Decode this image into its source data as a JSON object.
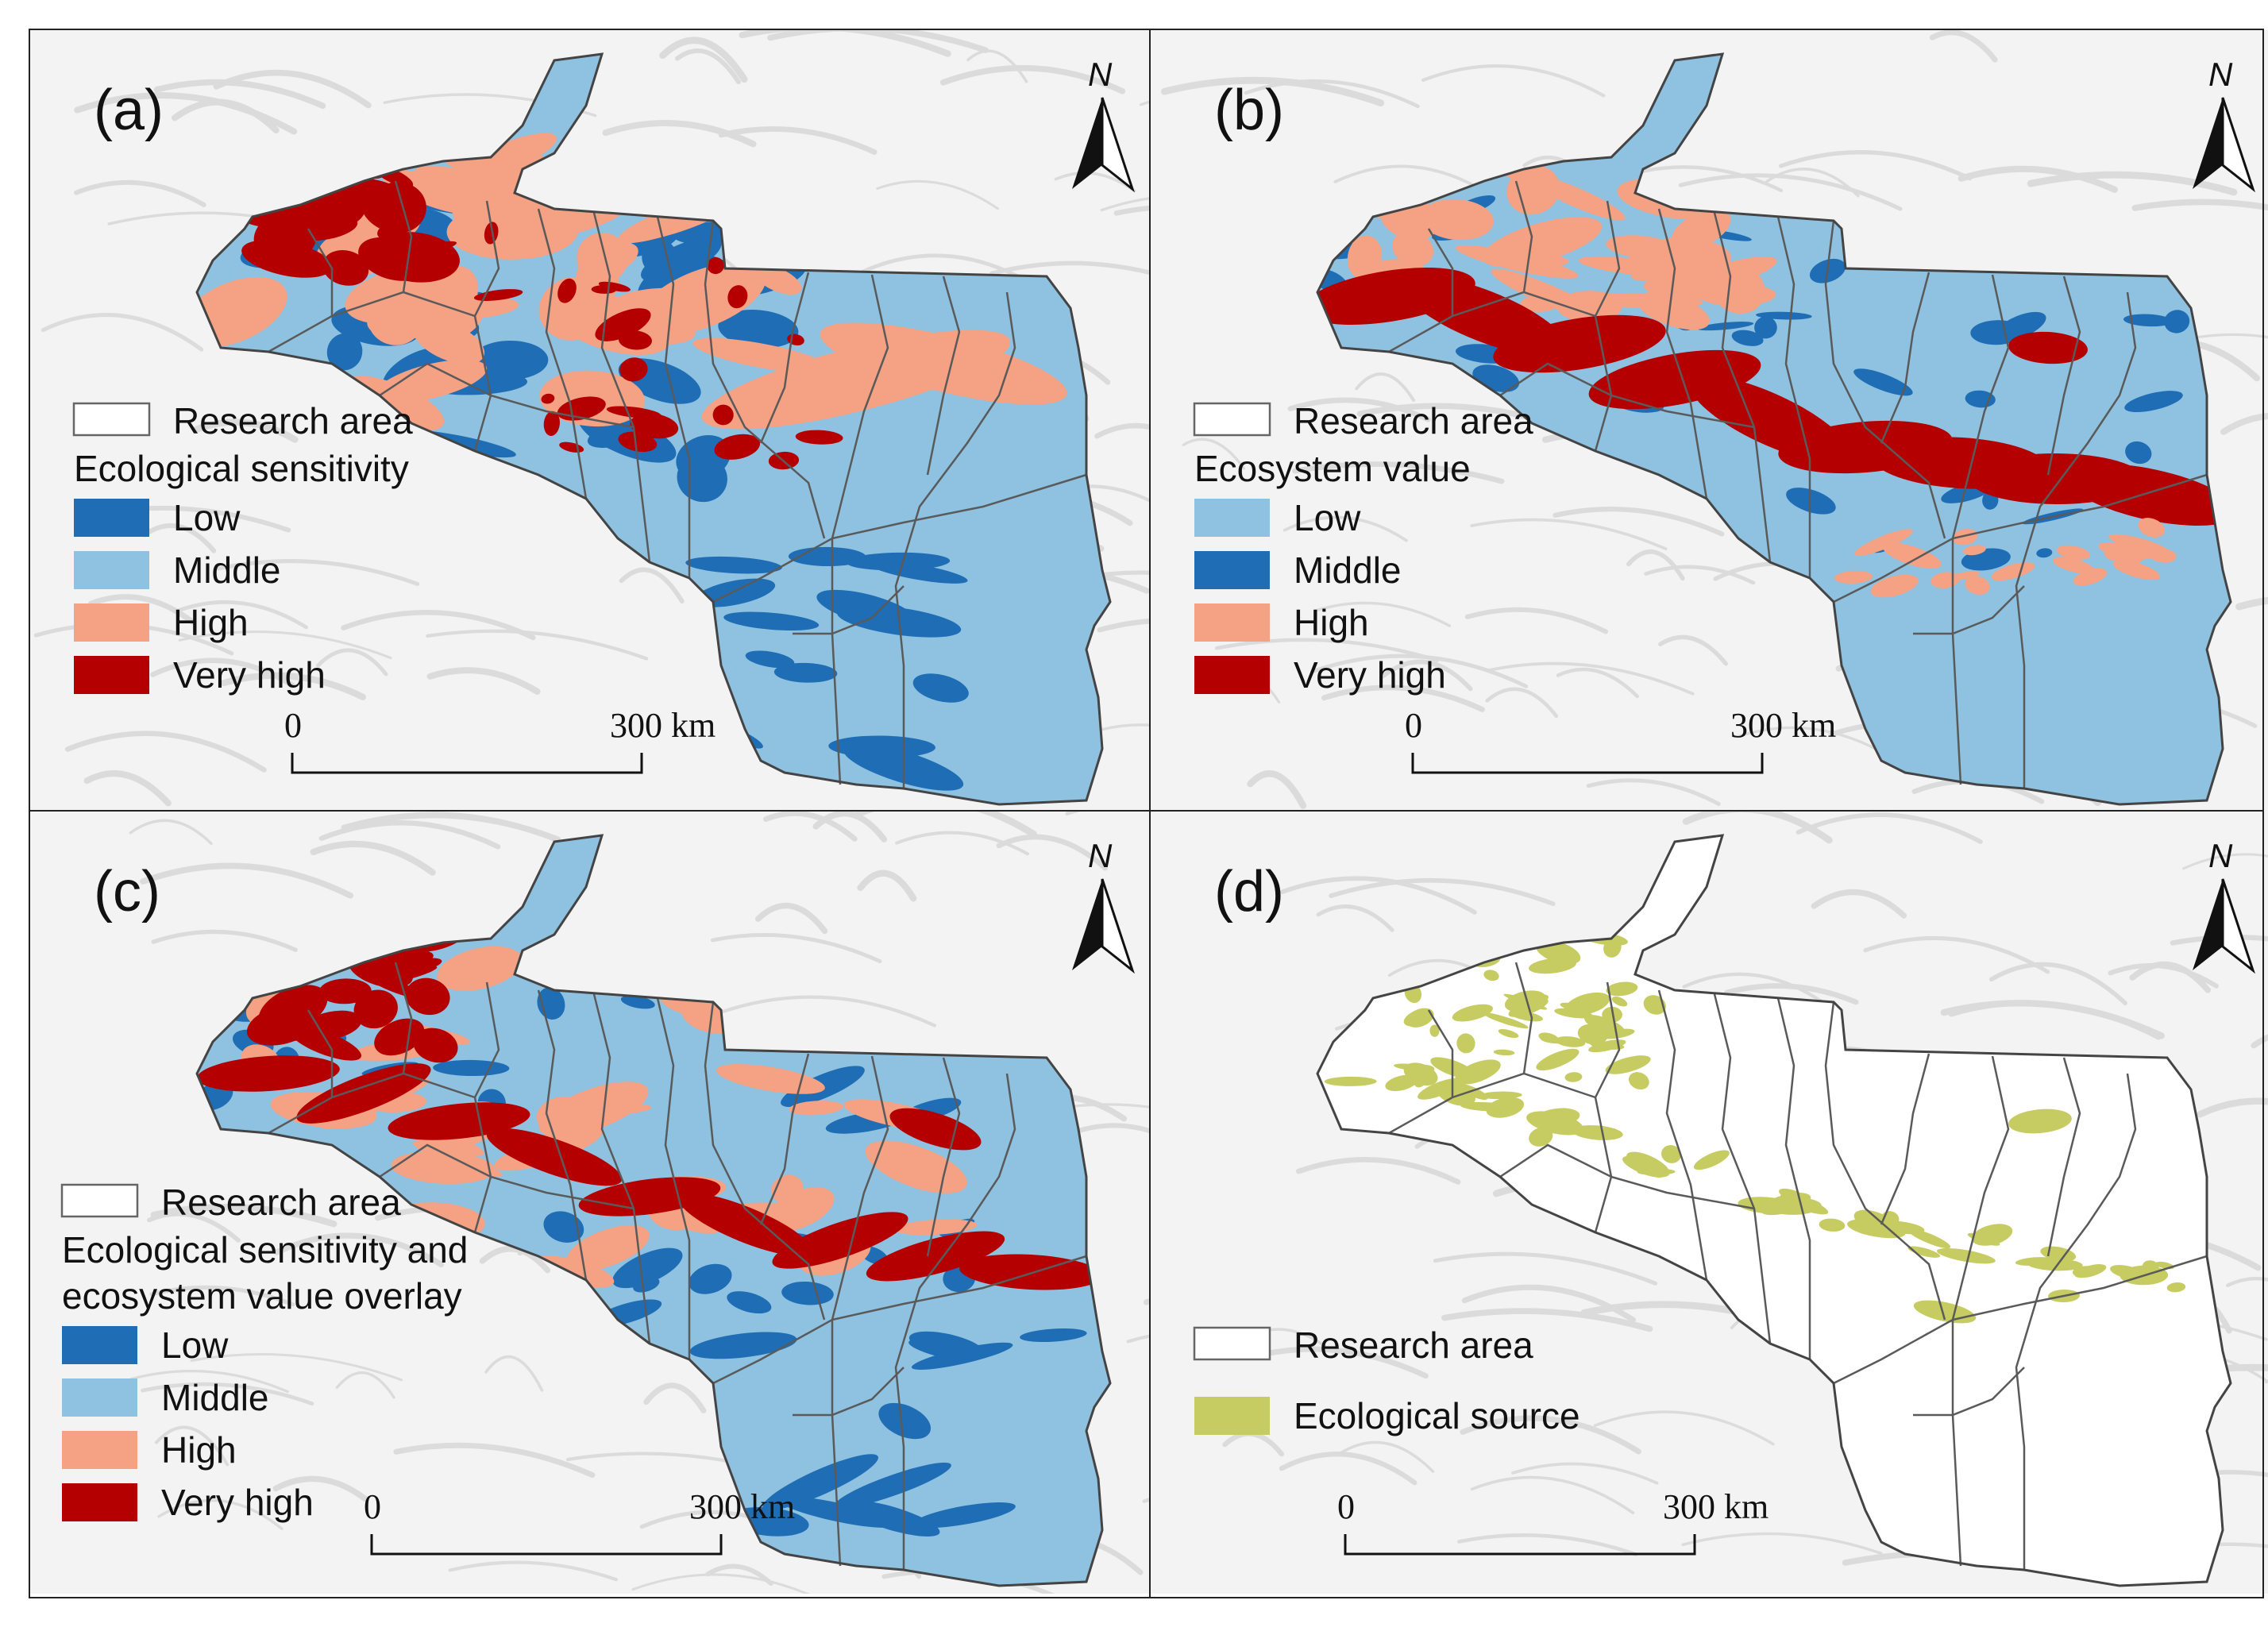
{
  "colors": {
    "low_blue": "#1f6db5",
    "middle_lightblue": "#8ec2e0",
    "high_salmon": "#f4a283",
    "very_high_red": "#b40000",
    "source_olive": "#c6cc62",
    "boundary": "#5a5a5a",
    "background_terrain": "#e6e6e6"
  },
  "panels": [
    {
      "label": "(a)",
      "north": "N",
      "legend": {
        "boundary_label": "Research area",
        "title_lines": [
          "Ecological sensitivity"
        ],
        "classes": [
          "Low",
          "Middle",
          "High",
          "Very high"
        ],
        "class_colors": [
          "#1f6db5",
          "#8ec2e0",
          "#f4a283",
          "#b40000"
        ]
      },
      "scale": {
        "start": "0",
        "end": "300 km"
      }
    },
    {
      "label": "(b)",
      "north": "N",
      "legend": {
        "boundary_label": "Research area",
        "title_lines": [
          "Ecosystem value"
        ],
        "classes": [
          "Low",
          "Middle",
          "High",
          "Very high"
        ],
        "class_colors": [
          "#8ec2e0",
          "#1f6db5",
          "#f4a283",
          "#b40000"
        ]
      },
      "scale": {
        "start": "0",
        "end": "300 km"
      }
    },
    {
      "label": "(c)",
      "north": "N",
      "legend": {
        "boundary_label": "Research area",
        "title_lines": [
          "Ecological sensitivity and",
          "ecosystem value overlay"
        ],
        "classes": [
          "Low",
          "Middle",
          "High",
          "Very high"
        ],
        "class_colors": [
          "#1f6db5",
          "#8ec2e0",
          "#f4a283",
          "#b40000"
        ]
      },
      "scale": {
        "start": "0",
        "end": "300 km"
      }
    },
    {
      "label": "(d)",
      "north": "N",
      "legend": {
        "boundary_label": "Research area",
        "title_lines": [],
        "classes": [
          "Ecological source"
        ],
        "class_colors": [
          "#c6cc62"
        ]
      },
      "scale": {
        "start": "0",
        "end": "300 km"
      }
    }
  ]
}
